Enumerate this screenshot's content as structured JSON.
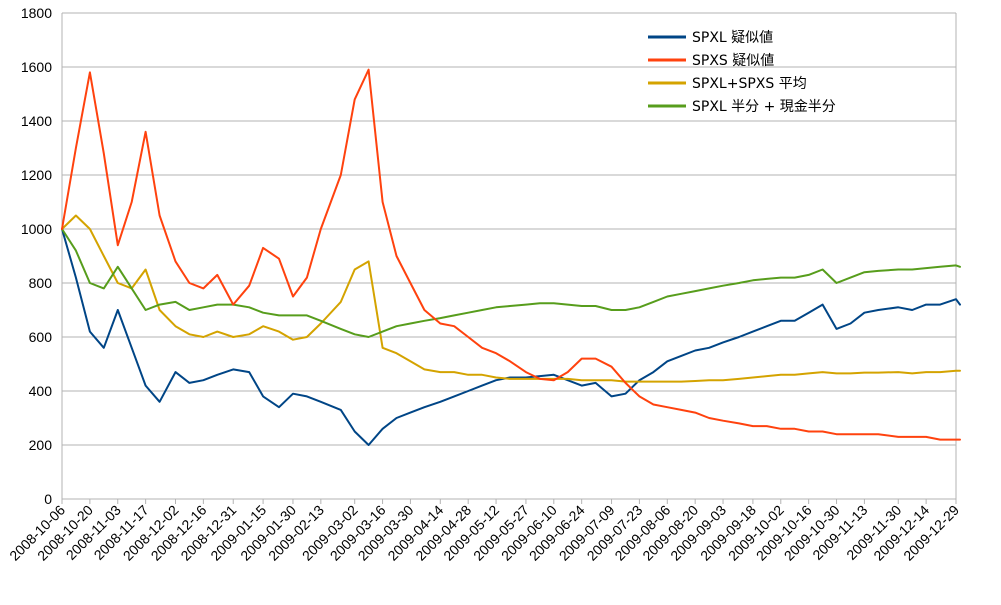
{
  "chart_data": {
    "type": "line",
    "title": "",
    "xlabel": "",
    "ylabel": "",
    "ylim": [
      0,
      1800
    ],
    "yticks": [
      0,
      200,
      400,
      600,
      800,
      1000,
      1200,
      1400,
      1600,
      1800
    ],
    "grid": true,
    "legend_position": "top-right",
    "x_tick_labels": [
      "2008-10-06",
      "2008-10-20",
      "2008-11-03",
      "2008-11-17",
      "2008-12-02",
      "2008-12-16",
      "2008-12-31",
      "2009-01-15",
      "2009-01-30",
      "2009-02-13",
      "2009-03-02",
      "2009-03-16",
      "2009-03-30",
      "2009-04-14",
      "2009-04-28",
      "2009-05-12",
      "2009-05-27",
      "2009-06-10",
      "2009-06-24",
      "2009-07-09",
      "2009-07-23",
      "2009-08-06",
      "2009-08-20",
      "2009-09-03",
      "2009-09-18",
      "2009-10-02",
      "2009-10-16",
      "2009-10-30",
      "2009-11-13",
      "2009-11-30",
      "2009-12-14",
      "2009-12-29"
    ],
    "x": [
      "2008-10-06",
      "2008-10-13",
      "2008-10-20",
      "2008-10-27",
      "2008-11-03",
      "2008-11-10",
      "2008-11-17",
      "2008-11-24",
      "2008-12-02",
      "2008-12-09",
      "2008-12-16",
      "2008-12-23",
      "2008-12-31",
      "2009-01-08",
      "2009-01-15",
      "2009-01-23",
      "2009-01-30",
      "2009-02-06",
      "2009-02-13",
      "2009-02-23",
      "2009-03-02",
      "2009-03-09",
      "2009-03-16",
      "2009-03-23",
      "2009-03-30",
      "2009-04-06",
      "2009-04-14",
      "2009-04-21",
      "2009-04-28",
      "2009-05-05",
      "2009-05-12",
      "2009-05-19",
      "2009-05-27",
      "2009-06-03",
      "2009-06-10",
      "2009-06-17",
      "2009-06-24",
      "2009-07-01",
      "2009-07-09",
      "2009-07-16",
      "2009-07-23",
      "2009-07-30",
      "2009-08-06",
      "2009-08-13",
      "2009-08-20",
      "2009-08-27",
      "2009-09-03",
      "2009-09-11",
      "2009-09-18",
      "2009-09-25",
      "2009-10-02",
      "2009-10-09",
      "2009-10-16",
      "2009-10-23",
      "2009-10-30",
      "2009-11-06",
      "2009-11-13",
      "2009-11-20",
      "2009-11-30",
      "2009-12-07",
      "2009-12-14",
      "2009-12-21",
      "2009-12-29",
      "2009-12-31"
    ],
    "series": [
      {
        "name": "SPXL 疑似値",
        "color": "#004586",
        "values": [
          1000,
          820,
          620,
          560,
          700,
          560,
          420,
          360,
          470,
          430,
          440,
          460,
          480,
          470,
          380,
          340,
          390,
          380,
          360,
          330,
          250,
          200,
          260,
          300,
          320,
          340,
          360,
          380,
          400,
          420,
          440,
          450,
          450,
          455,
          460,
          440,
          420,
          430,
          380,
          390,
          440,
          470,
          510,
          530,
          550,
          560,
          580,
          600,
          620,
          640,
          660,
          660,
          690,
          720,
          630,
          650,
          690,
          700,
          710,
          700,
          720,
          720,
          740,
          720
        ]
      },
      {
        "name": "SPXS 疑似値",
        "color": "#ff420e",
        "values": [
          1000,
          1300,
          1580,
          1280,
          940,
          1100,
          1360,
          1050,
          880,
          800,
          780,
          830,
          720,
          790,
          930,
          890,
          750,
          820,
          1000,
          1200,
          1480,
          1590,
          1100,
          900,
          800,
          700,
          650,
          640,
          600,
          560,
          540,
          510,
          470,
          445,
          440,
          470,
          520,
          520,
          490,
          430,
          380,
          350,
          340,
          330,
          320,
          300,
          290,
          280,
          270,
          270,
          260,
          260,
          250,
          250,
          240,
          240,
          240,
          240,
          230,
          230,
          230,
          220,
          220,
          220
        ]
      },
      {
        "name": "SPXL+SPXS 平均",
        "color": "#d4a300",
        "values": [
          1000,
          1050,
          1000,
          900,
          800,
          780,
          850,
          700,
          640,
          610,
          600,
          620,
          600,
          610,
          640,
          620,
          590,
          600,
          650,
          730,
          850,
          880,
          560,
          540,
          510,
          480,
          470,
          470,
          460,
          460,
          450,
          445,
          445,
          445,
          445,
          445,
          440,
          440,
          440,
          435,
          435,
          435,
          435,
          435,
          437,
          440,
          440,
          445,
          450,
          455,
          460,
          460,
          465,
          470,
          465,
          465,
          468,
          468,
          470,
          465,
          470,
          470,
          475,
          475
        ]
      },
      {
        "name": "SPXL 半分 + 現金半分",
        "color": "#579d1c",
        "values": [
          1000,
          920,
          800,
          780,
          860,
          780,
          700,
          720,
          730,
          700,
          710,
          720,
          720,
          710,
          690,
          680,
          680,
          680,
          660,
          630,
          610,
          600,
          620,
          640,
          650,
          660,
          670,
          680,
          690,
          700,
          710,
          715,
          720,
          725,
          725,
          720,
          715,
          715,
          700,
          700,
          710,
          730,
          750,
          760,
          770,
          780,
          790,
          800,
          810,
          815,
          820,
          820,
          830,
          850,
          800,
          820,
          840,
          845,
          850,
          850,
          855,
          860,
          865,
          860
        ]
      }
    ]
  }
}
